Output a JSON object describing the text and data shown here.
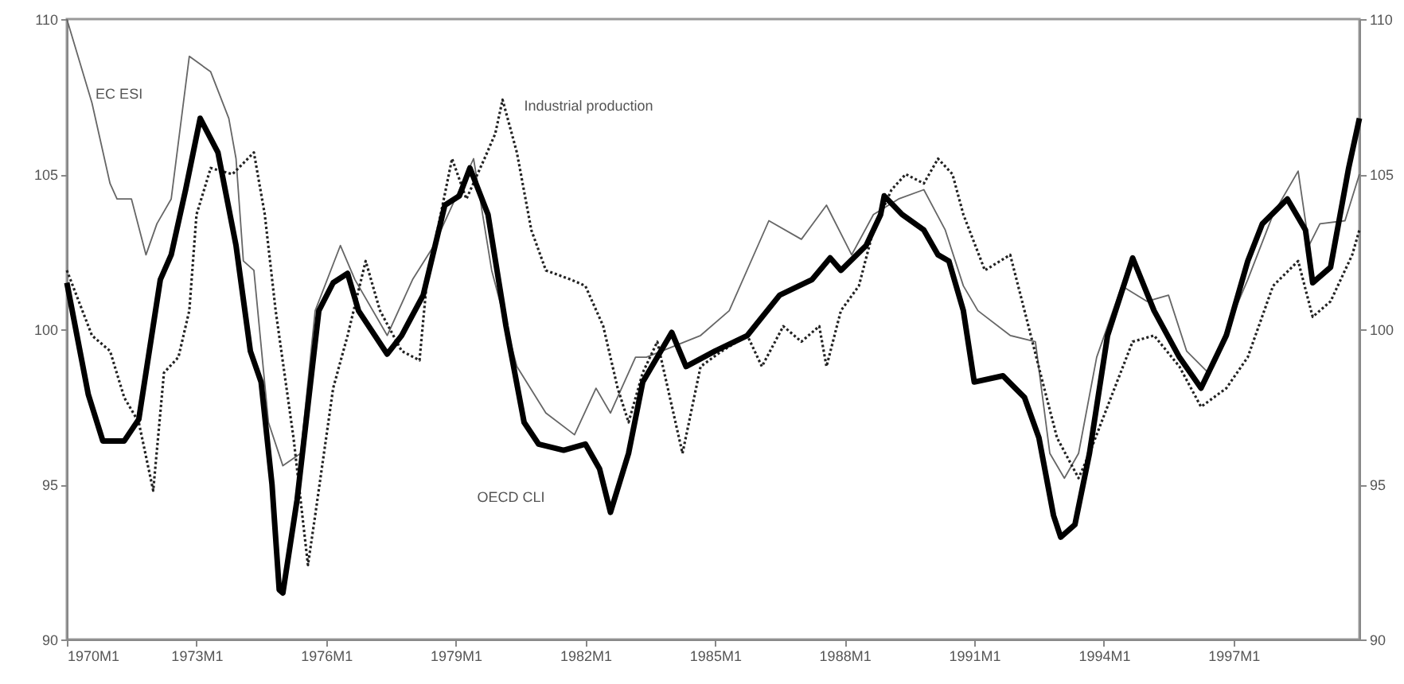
{
  "chart_data": {
    "type": "line",
    "xlim": [
      "1970-01",
      "1999-12"
    ],
    "xticks": [
      {
        "value": "1970-01",
        "label": "1970M1"
      },
      {
        "value": "1973-01",
        "label": "1973M1"
      },
      {
        "value": "1976-01",
        "label": "1976M1"
      },
      {
        "value": "1979-01",
        "label": "1979M1"
      },
      {
        "value": "1982-01",
        "label": "1982M1"
      },
      {
        "value": "1985-01",
        "label": "1985M1"
      },
      {
        "value": "1988-01",
        "label": "1988M1"
      },
      {
        "value": "1991-01",
        "label": "1991M1"
      },
      {
        "value": "1994-01",
        "label": "1994M1"
      },
      {
        "value": "1997-01",
        "label": "1997M1"
      }
    ],
    "ylim": [
      90,
      110
    ],
    "yticks": [
      90,
      95,
      100,
      105,
      110
    ],
    "y2lim": [
      90,
      110
    ],
    "y2ticks": [
      90,
      95,
      100,
      105,
      110
    ],
    "grid": false,
    "legend": false,
    "series": [
      {
        "name": "EC ESI",
        "color": "#666666",
        "line_style": "solid",
        "x": [
          "1970-01",
          "1970-08",
          "1971-01",
          "1971-03",
          "1971-07",
          "1971-11",
          "1972-02",
          "1972-06",
          "1972-11",
          "1973-05",
          "1973-10",
          "1973-12",
          "1974-02",
          "1974-05",
          "1974-09",
          "1975-01",
          "1975-06",
          "1975-10",
          "1976-05",
          "1976-09",
          "1977-06",
          "1978-01",
          "1978-07",
          "1979-02",
          "1979-06",
          "1979-11",
          "1980-06",
          "1981-02",
          "1981-10",
          "1982-04",
          "1982-08",
          "1983-03",
          "1983-06",
          "1984-09",
          "1985-05",
          "1986-04",
          "1987-01",
          "1987-08",
          "1988-03",
          "1988-09",
          "1989-04",
          "1989-11",
          "1990-05",
          "1990-10",
          "1991-02",
          "1991-11",
          "1992-06",
          "1992-10",
          "1993-02",
          "1993-06",
          "1993-11",
          "1994-06",
          "1995-01",
          "1995-07",
          "1995-12",
          "1996-06",
          "1997-05",
          "1997-12",
          "1998-07",
          "1998-10",
          "1999-01",
          "1999-08",
          "1999-12"
        ],
        "values": [
          110,
          107.3,
          104.7,
          104.2,
          104.2,
          102.4,
          103.4,
          104.2,
          108.8,
          108.3,
          106.8,
          105.5,
          102.2,
          101.9,
          97,
          95.6,
          96,
          100.6,
          102.7,
          101.6,
          99.8,
          101.6,
          102.7,
          104.5,
          105.5,
          101.9,
          98.8,
          97.3,
          96.6,
          98.1,
          97.3,
          99.1,
          99.1,
          99.8,
          100.6,
          103.5,
          102.9,
          104,
          102.4,
          103.7,
          104.2,
          104.5,
          103.2,
          101.4,
          100.6,
          99.8,
          99.6,
          96,
          95.2,
          96,
          99.1,
          101.4,
          100.9,
          101.1,
          99.3,
          98.6,
          101.6,
          103.7,
          105.1,
          102.7,
          103.4,
          103.5,
          105
        ]
      },
      {
        "name": "Industrial production",
        "color": "#222222",
        "line_style": "dotted",
        "x": [
          "1970-01",
          "1970-08",
          "1971-01",
          "1971-05",
          "1971-09",
          "1972-01",
          "1972-04",
          "1972-08",
          "1972-11",
          "1973-01",
          "1973-05",
          "1973-11",
          "1974-05",
          "1974-08",
          "1974-11",
          "1975-04",
          "1975-08",
          "1975-10",
          "1976-03",
          "1976-07",
          "1976-12",
          "1977-04",
          "1977-10",
          "1978-03",
          "1978-05",
          "1978-12",
          "1979-04",
          "1979-09",
          "1979-12",
          "1980-02",
          "1980-06",
          "1980-10",
          "1981-02",
          "1981-09",
          "1982-01",
          "1982-06",
          "1982-10",
          "1983-01",
          "1983-05",
          "1983-09",
          "1984-04",
          "1984-09",
          "1985-03",
          "1985-10",
          "1986-02",
          "1986-08",
          "1987-01",
          "1987-06",
          "1987-08",
          "1987-12",
          "1988-05",
          "1988-09",
          "1989-02",
          "1989-06",
          "1989-11",
          "1990-03",
          "1990-07",
          "1990-10",
          "1991-04",
          "1991-11",
          "1992-03",
          "1992-08",
          "1992-12",
          "1993-06",
          "1993-09",
          "1994-04",
          "1994-09",
          "1995-03",
          "1995-10",
          "1996-04",
          "1996-11",
          "1997-05",
          "1997-12",
          "1998-07",
          "1998-11",
          "1999-04",
          "1999-10",
          "1999-12"
        ],
        "values": [
          101.9,
          99.8,
          99.3,
          97.8,
          97,
          94.8,
          98.6,
          99.1,
          100.6,
          103.7,
          105.2,
          105,
          105.7,
          103.7,
          100.6,
          96.5,
          92.4,
          94,
          98.1,
          99.8,
          102.2,
          100.6,
          99.3,
          99,
          101.5,
          105.5,
          104.2,
          105.5,
          106.3,
          107.4,
          105.7,
          103.2,
          101.9,
          101.6,
          101.4,
          100.1,
          98.1,
          97,
          98.6,
          99.6,
          96,
          98.8,
          99.3,
          99.8,
          98.8,
          100.1,
          99.6,
          100.1,
          98.8,
          100.6,
          101.4,
          103.2,
          104.5,
          105,
          104.7,
          105.5,
          105,
          103.7,
          101.9,
          102.4,
          100.6,
          98.3,
          96.5,
          95.2,
          96,
          98.1,
          99.6,
          99.8,
          98.8,
          97.5,
          98.1,
          99.1,
          101.4,
          102.2,
          100.4,
          100.9,
          102.4,
          103.2
        ]
      },
      {
        "name": "OECD CLI",
        "color": "#000000",
        "line_style": "solid",
        "x": [
          "1970-01",
          "1970-07",
          "1970-11",
          "1971-05",
          "1971-09",
          "1972-03",
          "1972-06",
          "1972-10",
          "1973-02",
          "1973-07",
          "1973-12",
          "1974-04",
          "1974-07",
          "1974-10",
          "1974-12",
          "1975-01",
          "1975-05",
          "1975-11",
          "1976-03",
          "1976-07",
          "1976-10",
          "1977-06",
          "1977-10",
          "1978-04",
          "1978-10",
          "1979-02",
          "1979-05",
          "1979-10",
          "1980-03",
          "1980-08",
          "1980-12",
          "1981-07",
          "1982-01",
          "1982-05",
          "1982-08",
          "1983-01",
          "1983-05",
          "1984-01",
          "1984-05",
          "1985-01",
          "1985-10",
          "1986-07",
          "1987-04",
          "1987-09",
          "1987-12",
          "1988-07",
          "1988-11",
          "1988-12",
          "1989-05",
          "1989-11",
          "1990-03",
          "1990-06",
          "1990-10",
          "1991-01",
          "1991-09",
          "1992-03",
          "1992-07",
          "1992-11",
          "1993-01",
          "1993-05",
          "1993-09",
          "1994-02",
          "1994-09",
          "1995-03",
          "1995-10",
          "1996-04",
          "1996-11",
          "1997-05",
          "1997-09",
          "1998-04",
          "1998-09",
          "1998-11",
          "1999-04",
          "1999-09",
          "1999-12"
        ],
        "values": [
          101.5,
          97.9,
          96.4,
          96.4,
          97.1,
          101.6,
          102.4,
          104.5,
          106.8,
          105.7,
          102.7,
          99.3,
          98.3,
          95,
          91.6,
          91.5,
          94.5,
          100.6,
          101.5,
          101.8,
          100.6,
          99.2,
          99.8,
          101.1,
          104,
          104.3,
          105.2,
          103.7,
          100.1,
          97,
          96.3,
          96.1,
          96.3,
          95.5,
          94.1,
          96,
          98.3,
          99.9,
          98.8,
          99.3,
          99.8,
          101.1,
          101.6,
          102.3,
          101.9,
          102.7,
          103.7,
          104.3,
          103.7,
          103.2,
          102.4,
          102.2,
          100.6,
          98.3,
          98.5,
          97.8,
          96.5,
          94,
          93.3,
          93.7,
          96,
          99.8,
          102.3,
          100.6,
          99.1,
          98.1,
          99.8,
          102.2,
          103.4,
          104.2,
          103.2,
          101.5,
          102,
          105.2,
          106.8
        ]
      }
    ]
  }
}
